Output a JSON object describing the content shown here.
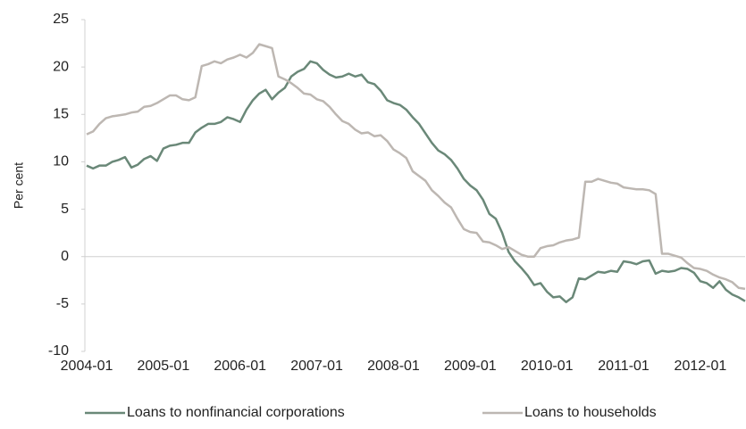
{
  "chart_data": {
    "type": "line",
    "ylabel": "Per cent",
    "x": [
      "2004-01",
      "2004-02",
      "2004-03",
      "2004-04",
      "2004-05",
      "2004-06",
      "2004-07",
      "2004-08",
      "2004-09",
      "2004-10",
      "2004-11",
      "2004-12",
      "2005-01",
      "2005-02",
      "2005-03",
      "2005-04",
      "2005-05",
      "2005-06",
      "2005-07",
      "2005-08",
      "2005-09",
      "2005-10",
      "2005-11",
      "2005-12",
      "2006-01",
      "2006-02",
      "2006-03",
      "2006-04",
      "2006-05",
      "2006-06",
      "2006-07",
      "2006-08",
      "2006-09",
      "2006-10",
      "2006-11",
      "2006-12",
      "2007-01",
      "2007-02",
      "2007-03",
      "2007-04",
      "2007-05",
      "2007-06",
      "2007-07",
      "2007-08",
      "2007-09",
      "2007-10",
      "2007-11",
      "2007-12",
      "2008-01",
      "2008-02",
      "2008-03",
      "2008-04",
      "2008-05",
      "2008-06",
      "2008-07",
      "2008-08",
      "2008-09",
      "2008-10",
      "2008-11",
      "2008-12",
      "2009-01",
      "2009-02",
      "2009-03",
      "2009-04",
      "2009-05",
      "2009-06",
      "2009-07",
      "2009-08",
      "2009-09",
      "2009-10",
      "2009-11",
      "2009-12",
      "2010-01",
      "2010-02",
      "2010-03",
      "2010-04",
      "2010-05",
      "2010-06",
      "2010-07",
      "2010-08",
      "2010-09",
      "2010-10",
      "2010-11",
      "2010-12",
      "2011-01",
      "2011-02",
      "2011-03",
      "2011-04",
      "2011-05",
      "2011-06",
      "2011-07",
      "2011-08",
      "2011-09",
      "2011-10",
      "2011-11",
      "2011-12",
      "2012-01",
      "2012-02",
      "2012-03",
      "2012-04",
      "2012-05",
      "2012-06",
      "2012-07",
      "2012-08"
    ],
    "xticks": [
      "2004-01",
      "2005-01",
      "2006-01",
      "2007-01",
      "2008-01",
      "2009-01",
      "2010-01",
      "2011-01",
      "2012-01"
    ],
    "ylim": [
      -10,
      25
    ],
    "yticks": [
      -10,
      -5,
      0,
      5,
      10,
      15,
      20,
      25
    ],
    "legend": "bottom",
    "series": [
      {
        "name": "Loans to nonfinancial corporations",
        "color": "#6a8878",
        "values": [
          9.6,
          9.3,
          9.6,
          9.6,
          10.0,
          10.2,
          10.5,
          9.4,
          9.7,
          10.3,
          10.6,
          10.1,
          11.4,
          11.7,
          11.8,
          12.0,
          12.0,
          13.1,
          13.6,
          14.0,
          14.0,
          14.2,
          14.7,
          14.5,
          14.2,
          15.5,
          16.5,
          17.2,
          17.6,
          16.6,
          17.3,
          17.8,
          19.0,
          19.5,
          19.8,
          20.6,
          20.4,
          19.7,
          19.2,
          18.9,
          19.0,
          19.3,
          19.0,
          19.2,
          18.4,
          18.2,
          17.5,
          16.5,
          16.2,
          16.0,
          15.5,
          14.7,
          14.0,
          13.0,
          12.0,
          11.2,
          10.8,
          10.2,
          9.3,
          8.2,
          7.5,
          7.0,
          6.0,
          4.5,
          4.0,
          2.5,
          0.5,
          -0.5,
          -1.2,
          -2.0,
          -3.0,
          -2.8,
          -3.7,
          -4.3,
          -4.2,
          -4.8,
          -4.3,
          -2.3,
          -2.4,
          -2.0,
          -1.6,
          -1.7,
          -1.5,
          -1.6,
          -0.5,
          -0.6,
          -0.8,
          -0.5,
          -0.4,
          -1.8,
          -1.5,
          -1.6,
          -1.5,
          -1.2,
          -1.3,
          -1.7,
          -2.6,
          -2.8,
          -3.3,
          -2.6,
          -3.5,
          -4.0,
          -4.3,
          -4.7
        ]
      },
      {
        "name": "Loans to households",
        "color": "#bdb7b2",
        "values": [
          12.9,
          13.2,
          14.0,
          14.6,
          14.8,
          14.9,
          15.0,
          15.2,
          15.3,
          15.8,
          15.9,
          16.2,
          16.6,
          17.0,
          17.0,
          16.6,
          16.5,
          16.8,
          20.1,
          20.3,
          20.6,
          20.4,
          20.8,
          21.0,
          21.3,
          21.0,
          21.5,
          22.4,
          22.2,
          22.0,
          19.0,
          18.7,
          18.3,
          17.8,
          17.2,
          17.1,
          16.6,
          16.4,
          15.8,
          15.0,
          14.3,
          14.0,
          13.4,
          13.0,
          13.1,
          12.7,
          12.8,
          12.2,
          11.3,
          10.9,
          10.4,
          9.0,
          8.5,
          8.0,
          7.0,
          6.4,
          5.7,
          5.2,
          4.0,
          2.9,
          2.6,
          2.5,
          1.6,
          1.5,
          1.2,
          0.8,
          1.0,
          0.6,
          0.2,
          0.0,
          0.0,
          0.9,
          1.1,
          1.2,
          1.5,
          1.7,
          1.8,
          2.0,
          7.9,
          7.9,
          8.2,
          8.0,
          7.8,
          7.7,
          7.3,
          7.2,
          7.1,
          7.1,
          7.0,
          6.6,
          0.3,
          0.3,
          0.1,
          -0.1,
          -0.7,
          -1.2,
          -1.3,
          -1.5,
          -1.9,
          -2.2,
          -2.4,
          -2.7,
          -3.3,
          -3.4
        ]
      }
    ]
  }
}
